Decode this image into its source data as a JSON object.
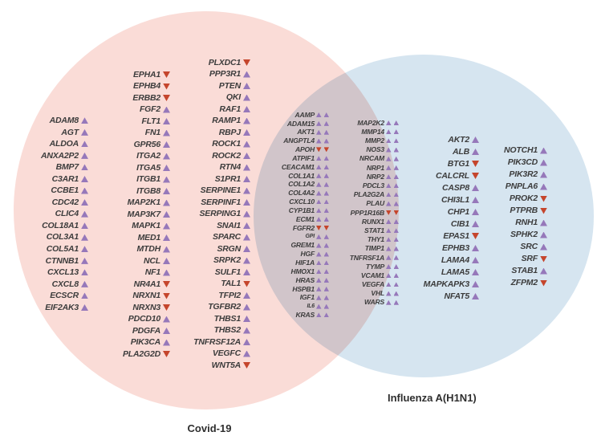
{
  "venn": {
    "left_label": "Covid-19",
    "right_label": "Influenza A(H1N1)",
    "colors": {
      "left_circle": "#fadcd7",
      "right_circle": "#d6e5f0",
      "up_arrow": "#9678ba",
      "down_arrow": "#c5452c",
      "gene_text": "#3c3c3c"
    },
    "arrow_legend": {
      "u": "up-triangle",
      "d": "down-triangle"
    }
  },
  "columns": {
    "covid_col1": {
      "region": "covid_only",
      "genes": [
        {
          "name": "ADAM8",
          "arrows": "u"
        },
        {
          "name": "AGT",
          "arrows": "u"
        },
        {
          "name": "ALDOA",
          "arrows": "u"
        },
        {
          "name": "ANXA2P2",
          "arrows": "u"
        },
        {
          "name": "BMP7",
          "arrows": "u"
        },
        {
          "name": "C3AR1",
          "arrows": "u"
        },
        {
          "name": "CCBE1",
          "arrows": "u"
        },
        {
          "name": "CDC42",
          "arrows": "u"
        },
        {
          "name": "CLIC4",
          "arrows": "u"
        },
        {
          "name": "COL18A1",
          "arrows": "u"
        },
        {
          "name": "COL3A1",
          "arrows": "u"
        },
        {
          "name": "COL5A1",
          "arrows": "u"
        },
        {
          "name": "CTNNB1",
          "arrows": "u"
        },
        {
          "name": "CXCL13",
          "arrows": "u"
        },
        {
          "name": "CXCL8",
          "arrows": "u"
        },
        {
          "name": "ECSCR",
          "arrows": "u"
        },
        {
          "name": "EIF2AK3",
          "arrows": "u"
        }
      ]
    },
    "covid_col2": {
      "region": "covid_only",
      "genes": [
        {
          "name": "EPHA1",
          "arrows": "d"
        },
        {
          "name": "EPHB4",
          "arrows": "d"
        },
        {
          "name": "ERBB2",
          "arrows": "d"
        },
        {
          "name": "FGF2",
          "arrows": "u"
        },
        {
          "name": "FLT1",
          "arrows": "u"
        },
        {
          "name": "FN1",
          "arrows": "u"
        },
        {
          "name": "GPR56",
          "arrows": "u"
        },
        {
          "name": "ITGA2",
          "arrows": "u"
        },
        {
          "name": "ITGA5",
          "arrows": "u"
        },
        {
          "name": "ITGB1",
          "arrows": "u"
        },
        {
          "name": "ITGB8",
          "arrows": "u"
        },
        {
          "name": "MAP2K1",
          "arrows": "u"
        },
        {
          "name": "MAP3K7",
          "arrows": "u"
        },
        {
          "name": "MAPK1",
          "arrows": "u"
        },
        {
          "name": "MED1",
          "arrows": "u"
        },
        {
          "name": "MTDH",
          "arrows": "u"
        },
        {
          "name": "NCL",
          "arrows": "u"
        },
        {
          "name": "NF1",
          "arrows": "u"
        },
        {
          "name": "NR4A1",
          "arrows": "d"
        },
        {
          "name": "NRXN1",
          "arrows": "d"
        },
        {
          "name": "NRXN3",
          "arrows": "d"
        },
        {
          "name": "PDCD10",
          "arrows": "u"
        },
        {
          "name": "PDGFA",
          "arrows": "u"
        },
        {
          "name": "PIK3CA",
          "arrows": "u"
        },
        {
          "name": "PLA2G2D",
          "arrows": "d"
        }
      ]
    },
    "covid_col3": {
      "region": "covid_only",
      "genes": [
        {
          "name": "PLXDC1",
          "arrows": "d"
        },
        {
          "name": "PPP3R1",
          "arrows": "u"
        },
        {
          "name": "PTEN",
          "arrows": "u"
        },
        {
          "name": "QKI",
          "arrows": "u"
        },
        {
          "name": "RAF1",
          "arrows": "u"
        },
        {
          "name": "RAMP1",
          "arrows": "u"
        },
        {
          "name": "RBPJ",
          "arrows": "u"
        },
        {
          "name": "ROCK1",
          "arrows": "u"
        },
        {
          "name": "ROCK2",
          "arrows": "u"
        },
        {
          "name": "RTN4",
          "arrows": "u"
        },
        {
          "name": "S1PR1",
          "arrows": "u"
        },
        {
          "name": "SERPINE1",
          "arrows": "u"
        },
        {
          "name": "SERPINF1",
          "arrows": "u"
        },
        {
          "name": "SERPING1",
          "arrows": "u"
        },
        {
          "name": "SNAI1",
          "arrows": "u"
        },
        {
          "name": "SPARC",
          "arrows": "u"
        },
        {
          "name": "SRGN",
          "arrows": "u"
        },
        {
          "name": "SRPK2",
          "arrows": "u"
        },
        {
          "name": "SULF1",
          "arrows": "u"
        },
        {
          "name": "TAL1",
          "arrows": "d"
        },
        {
          "name": "TFPI2",
          "arrows": "u"
        },
        {
          "name": "TGFBR2",
          "arrows": "u"
        },
        {
          "name": "THBS1",
          "arrows": "u"
        },
        {
          "name": "THBS2",
          "arrows": "u"
        },
        {
          "name": "TNFRSF12A",
          "arrows": "u"
        },
        {
          "name": "VEGFC",
          "arrows": "u"
        },
        {
          "name": "WNT5A",
          "arrows": "d"
        }
      ]
    },
    "shared_col1": {
      "region": "intersection",
      "genes": [
        {
          "name": "AAMP",
          "arrows": "uu"
        },
        {
          "name": "ADAM15",
          "arrows": "uu"
        },
        {
          "name": "AKT1",
          "arrows": "uu"
        },
        {
          "name": "ANGPTL4",
          "arrows": "uu"
        },
        {
          "name": "APOH",
          "arrows": "dd"
        },
        {
          "name": "ATPIF1",
          "arrows": "uu"
        },
        {
          "name": "CEACAM1",
          "arrows": "uu"
        },
        {
          "name": "COL1A1",
          "arrows": "uu"
        },
        {
          "name": "COL1A2",
          "arrows": "uu"
        },
        {
          "name": "COL4A2",
          "arrows": "uu"
        },
        {
          "name": "CXCL10",
          "arrows": "uu"
        },
        {
          "name": "CYP1B1",
          "arrows": "uu"
        },
        {
          "name": "ECM1",
          "arrows": "uu"
        },
        {
          "name": "FGFR2",
          "arrows": "dd"
        },
        {
          "name": "GPI",
          "arrows": "uu",
          "small": true
        },
        {
          "name": "GREM1",
          "arrows": "uu"
        },
        {
          "name": "HGF",
          "arrows": "uu"
        },
        {
          "name": "HIF1A",
          "arrows": "uu"
        },
        {
          "name": "HMOX1",
          "arrows": "uu"
        },
        {
          "name": "HRAS",
          "arrows": "uu"
        },
        {
          "name": "HSPB1",
          "arrows": "uu"
        },
        {
          "name": "IGF1",
          "arrows": "uu"
        },
        {
          "name": "IL6",
          "arrows": "uu",
          "small": true
        },
        {
          "name": "KRAS",
          "arrows": "uu"
        }
      ]
    },
    "shared_col2": {
      "region": "intersection",
      "genes": [
        {
          "name": "MAP2K2",
          "arrows": "uu"
        },
        {
          "name": "MMP14",
          "arrows": "uu"
        },
        {
          "name": "MMP2",
          "arrows": "uu"
        },
        {
          "name": "NOS3",
          "arrows": "uu"
        },
        {
          "name": "NRCAM",
          "arrows": "uu"
        },
        {
          "name": "NRP1",
          "arrows": "uu"
        },
        {
          "name": "NRP2",
          "arrows": "uu"
        },
        {
          "name": "PDCL3",
          "arrows": "uu"
        },
        {
          "name": "PLA2G2A",
          "arrows": "uu"
        },
        {
          "name": "PLAU",
          "arrows": "uu"
        },
        {
          "name": "PPP1R16B",
          "arrows": "dd"
        },
        {
          "name": "RUNX1",
          "arrows": "uu"
        },
        {
          "name": "STAT1",
          "arrows": "uu"
        },
        {
          "name": "THY1",
          "arrows": "uu"
        },
        {
          "name": "TIMP1",
          "arrows": "uu"
        },
        {
          "name": "TNFRSF1A",
          "arrows": "uu"
        },
        {
          "name": "TYMP",
          "arrows": "uu"
        },
        {
          "name": "VCAM1",
          "arrows": "uu"
        },
        {
          "name": "VEGFA",
          "arrows": "uu"
        },
        {
          "name": "VHL",
          "arrows": "uu"
        },
        {
          "name": "WARS",
          "arrows": "uu"
        }
      ]
    },
    "flu_col1": {
      "region": "influenza_only",
      "genes": [
        {
          "name": "AKT2",
          "arrows": "u"
        },
        {
          "name": "ALB",
          "arrows": "u"
        },
        {
          "name": "BTG1",
          "arrows": "d"
        },
        {
          "name": "CALCRL",
          "arrows": "d"
        },
        {
          "name": "CASP8",
          "arrows": "u"
        },
        {
          "name": "CHI3L1",
          "arrows": "u"
        },
        {
          "name": "CHP1",
          "arrows": "u"
        },
        {
          "name": "CIB1",
          "arrows": "u"
        },
        {
          "name": "EPAS1",
          "arrows": "d"
        },
        {
          "name": "EPHB3",
          "arrows": "u"
        },
        {
          "name": "LAMA4",
          "arrows": "u"
        },
        {
          "name": "LAMA5",
          "arrows": "u"
        },
        {
          "name": "MAPKAPK3",
          "arrows": "u"
        },
        {
          "name": "NFAT5",
          "arrows": "u"
        }
      ]
    },
    "flu_col2": {
      "region": "influenza_only",
      "genes": [
        {
          "name": "NOTCH1",
          "arrows": "u"
        },
        {
          "name": "PIK3CD",
          "arrows": "u"
        },
        {
          "name": "PIK3R2",
          "arrows": "u"
        },
        {
          "name": "PNPLA6",
          "arrows": "u"
        },
        {
          "name": "PROK2",
          "arrows": "d"
        },
        {
          "name": "PTPRB",
          "arrows": "d"
        },
        {
          "name": "RNH1",
          "arrows": "u"
        },
        {
          "name": "SPHK2",
          "arrows": "u"
        },
        {
          "name": "SRC",
          "arrows": "u"
        },
        {
          "name": "SRF",
          "arrows": "d"
        },
        {
          "name": "STAB1",
          "arrows": "u"
        },
        {
          "name": "ZFPM2",
          "arrows": "d"
        }
      ]
    }
  }
}
